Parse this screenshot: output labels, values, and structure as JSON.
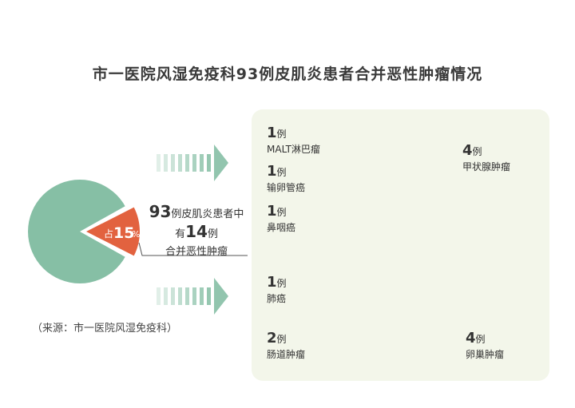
{
  "title": "市一医院风湿免疫科93例皮肌炎患者合并恶性肿瘤情况",
  "source": "（来源：市一医院风湿免疫科）",
  "summary": {
    "line1_num": "93",
    "line1_text": "例皮肌炎患者中",
    "line2_pre": "有",
    "line2_num": "14",
    "line2_text": "例",
    "line3": "合并恶性肿瘤"
  },
  "left_pie": {
    "prefix": "占",
    "percent": "15",
    "percent_sign": "%",
    "fraction": 0.15,
    "colors": {
      "main": "#86bfa5",
      "slice": "#e2623f"
    }
  },
  "chart_data": {
    "type": "pie",
    "donut": true,
    "categories": [
      "甲状腺肿瘤",
      "卵巢肿瘤",
      "肠道肿瘤",
      "肺癌",
      "鼻咽癌",
      "输卵管癌",
      "MALT淋巴瘤"
    ],
    "values": [
      4,
      4,
      2,
      1,
      1,
      1,
      1
    ],
    "colors": [
      "#c9d5b5",
      "#f0a25a",
      "#e2623f",
      "#86bfa5",
      "#c9d5b5",
      "#e2623f",
      "#86bfa5"
    ],
    "icons": [
      "thyroid-icon",
      "uterus-icon",
      "intestine-icon",
      "lungs-icon",
      "head-icon",
      "uterus-icon",
      "head-icon"
    ]
  },
  "labels": [
    {
      "count": "4",
      "unit": "例",
      "name": "甲状腺肿瘤"
    },
    {
      "count": "4",
      "unit": "例",
      "name": "卵巢肿瘤"
    },
    {
      "count": "2",
      "unit": "例",
      "name": "肠道肿瘤"
    },
    {
      "count": "1",
      "unit": "例",
      "name": "肺癌"
    },
    {
      "count": "1",
      "unit": "例",
      "name": "鼻咽癌"
    },
    {
      "count": "1",
      "unit": "例",
      "name": "输卵管癌"
    },
    {
      "count": "1",
      "unit": "例",
      "name": "MALT淋巴瘤"
    }
  ]
}
